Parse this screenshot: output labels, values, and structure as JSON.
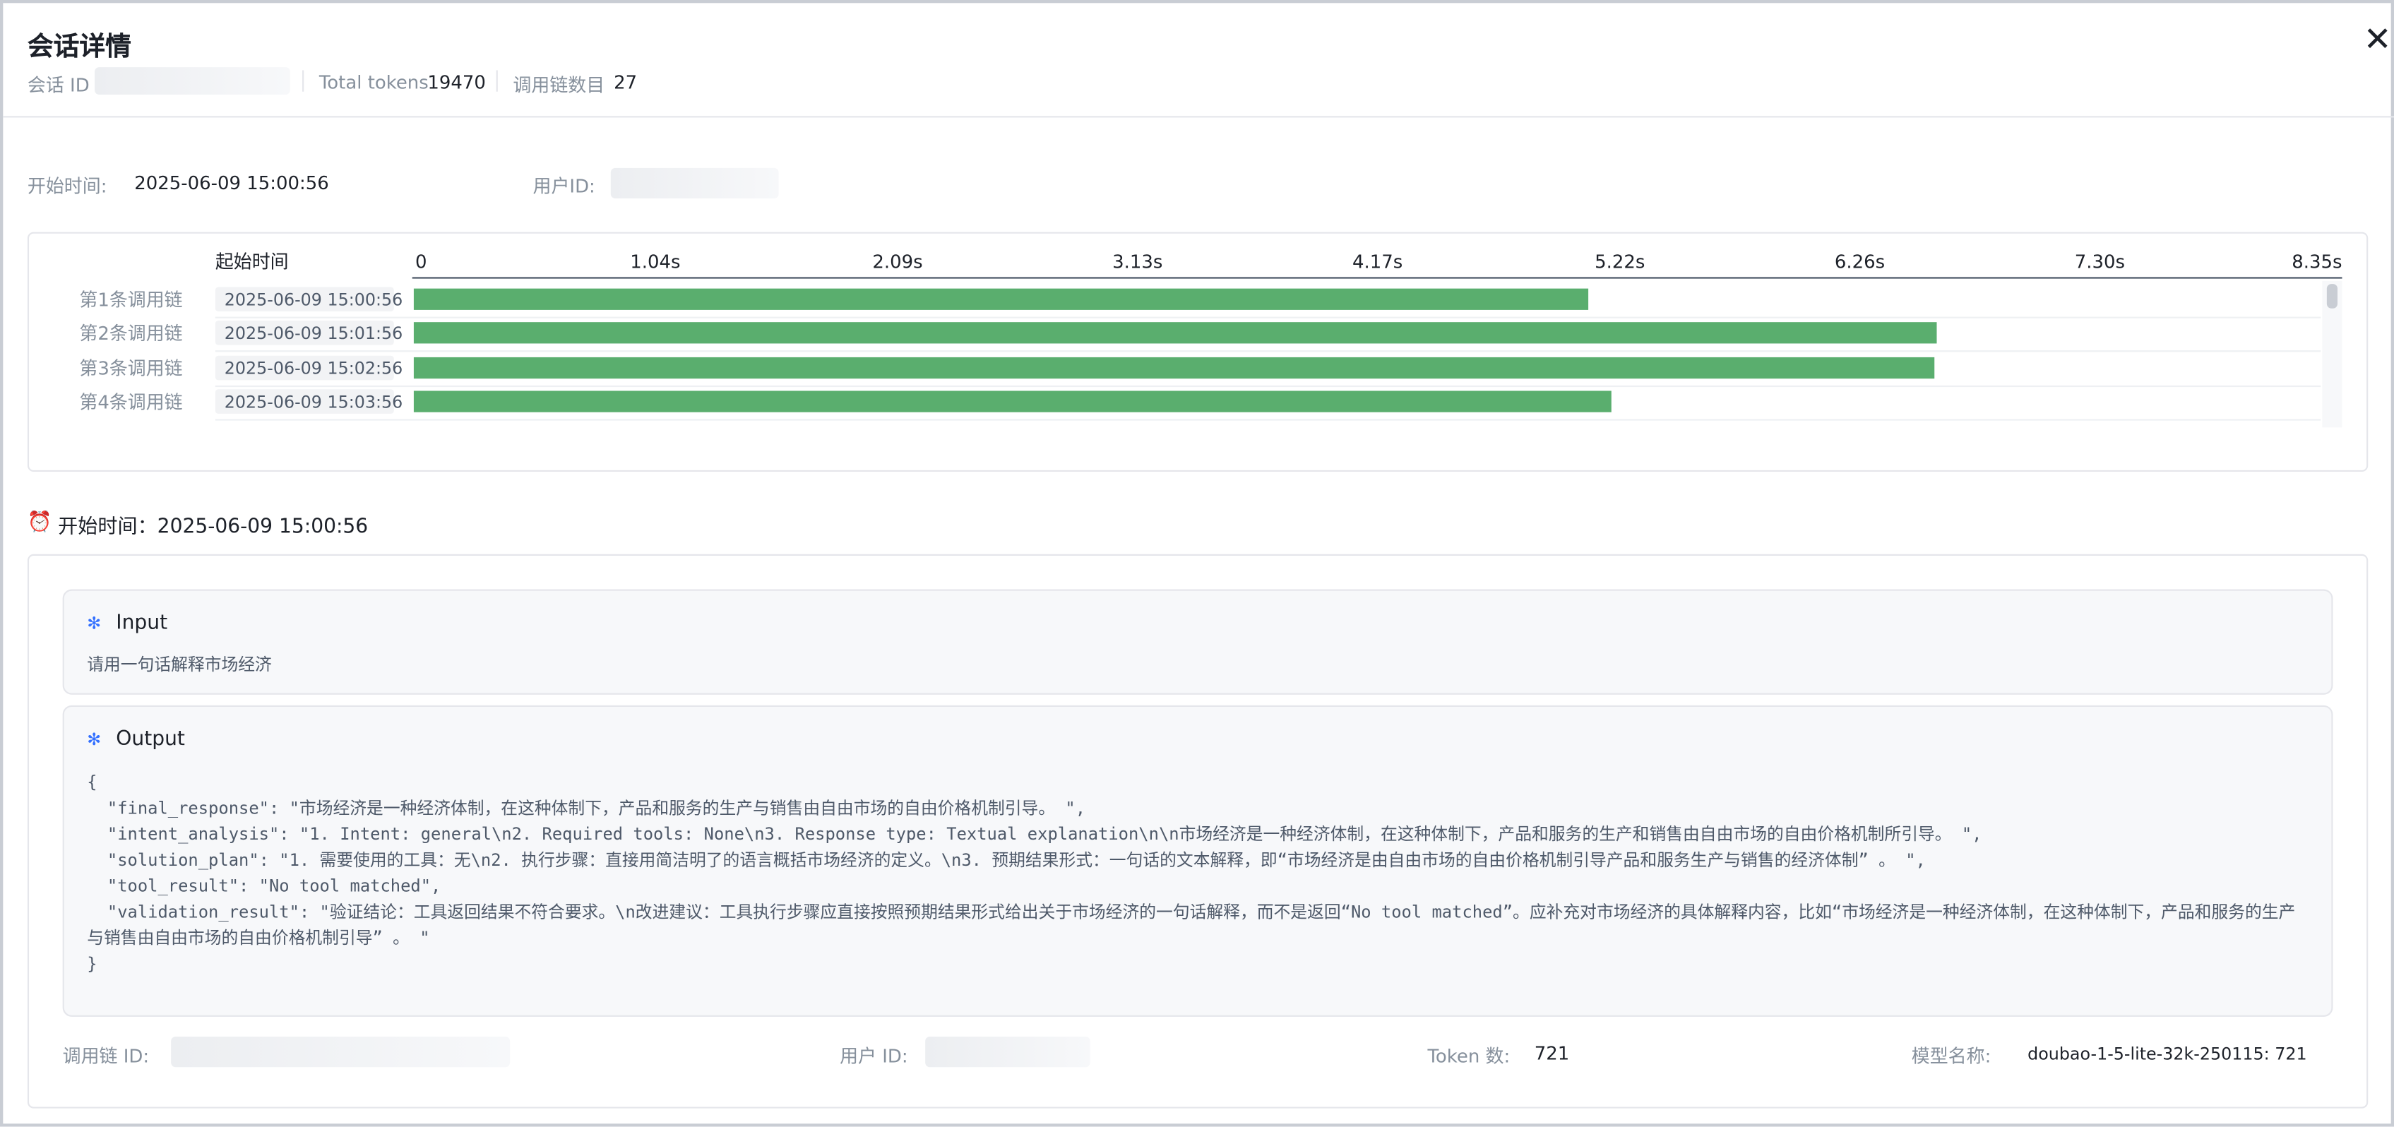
{
  "header": {
    "title": "会话详情",
    "session_id_label": "会话 ID",
    "total_tokens_label": "Total tokens",
    "total_tokens": 19470,
    "chain_count_label": "调用链数目",
    "chain_count": 27
  },
  "info": {
    "start_label": "开始时间:",
    "start": "2025-06-09 15:00:56",
    "user_label": "用户ID:"
  },
  "timeline": {
    "type": "bar",
    "column_label": "起始时间",
    "categories": [
      "第1条调用链",
      "第2条调用链",
      "第3条调用链",
      "第4条调用链"
    ],
    "start_times": [
      "2025-06-09 15:00:56",
      "2025-06-09 15:01:56",
      "2025-06-09 15:02:56",
      "2025-06-09 15:03:56"
    ],
    "values": [
      5.09,
      6.6,
      6.59,
      5.19
    ],
    "color": "#5aae6e",
    "xlim": [
      0,
      8.35
    ],
    "xticks": [
      0,
      {
        "value": 1.04,
        "label": "1.04s"
      },
      {
        "value": 2.09,
        "label": "2.09s"
      },
      {
        "value": 3.13,
        "label": "3.13s"
      },
      {
        "value": 4.17,
        "label": "4.17s"
      },
      {
        "value": 5.22,
        "label": "5.22s"
      },
      {
        "value": 6.26,
        "label": "6.26s"
      },
      {
        "value": 7.3,
        "label": "7.30s"
      },
      {
        "value": 8.35,
        "label": "8.35s"
      }
    ]
  },
  "detail": {
    "heading": "开始时间：2025-06-09 15:00:56",
    "input_title": "Input",
    "input": "请用一句话解释市场经济",
    "output_title": "Output",
    "output_lines": [
      "{",
      "  \"final_response\": \"市场经济是一种经济体制，在这种体制下，产品和服务的生产与销售由自由市场的自由价格机制引导。 \",",
      "  \"intent_analysis\": \"1. Intent: general\\n2. Required tools: None\\n3. Response type: Textual explanation\\n\\n市场经济是一种经济体制，在这种体制下，产品和服务的生产和销售由自由市场的自由价格机制所引导。 \",",
      "  \"solution_plan\": \"1. 需要使用的工具：无\\n2. 执行步骤：直接用简洁明了的语言概括市场经济的定义。\\n3. 预期结果形式：一句话的文本解释，即“市场经济是由自由市场的自由价格机制引导产品和服务生产与销售的经济体制” 。 \",",
      "  \"tool_result\": \"No tool matched\",",
      "  \"validation_result\": \"验证结论：工具返回结果不符合要求。\\n改进建议：工具执行步骤应直接按照预期结果形式给出关于市场经济的一句话解释，而不是返回“No tool matched”。应补充对市场经济的具体解释内容，比如“市场经济是一种经济体制，在这种体制下，产品和服务的生产与销售由自由市场的自由价格机制引导” 。 \"",
      "}"
    ],
    "footer": {
      "chain_id_label": "调用链 ID:",
      "user_id_label": "用户 ID:",
      "token_label": "Token 数:",
      "token": 721,
      "model_label": "模型名称:",
      "model": "doubao-1-5-lite-32k-250115: 721"
    }
  }
}
